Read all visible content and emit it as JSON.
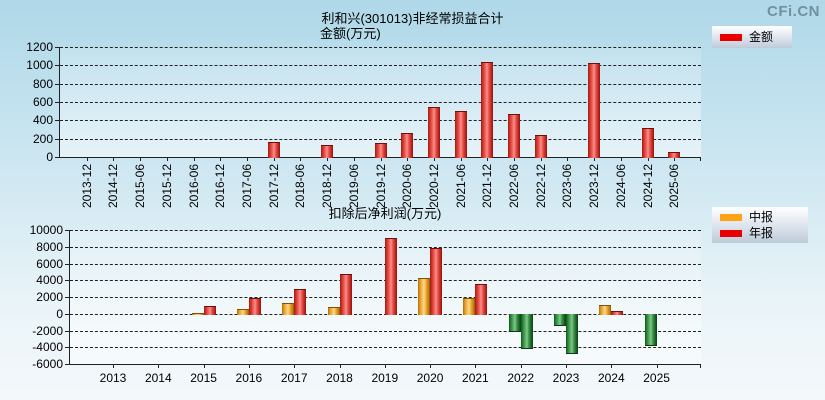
{
  "logo": "CFi.CN",
  "chart_data": [
    {
      "type": "bar",
      "title": "利和兴(301013)非经常损益合计",
      "subtitle": "金额(万元)",
      "xlabel": "",
      "ylabel": "金额(万元)",
      "ylim": [
        0,
        1200
      ],
      "yticks": [
        0,
        200,
        400,
        600,
        800,
        1000,
        1200
      ],
      "grid": true,
      "legend_position": "top-right",
      "legend": [
        {
          "label": "金额",
          "color": "#e80000"
        }
      ],
      "categories": [
        "2013-12",
        "2014-12",
        "2015-06",
        "2015-12",
        "2016-06",
        "2016-12",
        "2017-06",
        "2017-12",
        "2018-06",
        "2018-12",
        "2019-06",
        "2019-12",
        "2020-06",
        "2020-12",
        "2021-06",
        "2021-12",
        "2022-06",
        "2022-12",
        "2023-06",
        "2023-12",
        "2024-06",
        "2024-12",
        "2025-06"
      ],
      "series": [
        {
          "name": "金额",
          "color": "#e80000",
          "color_key": "red",
          "values": [
            null,
            null,
            null,
            null,
            null,
            null,
            null,
            160,
            null,
            130,
            null,
            155,
            260,
            550,
            500,
            1040,
            470,
            240,
            null,
            1030,
            null,
            320,
            60
          ]
        }
      ]
    },
    {
      "type": "bar",
      "title": "扣除后净利润(万元)",
      "xlabel": "",
      "ylabel": "扣除后净利润(万元)",
      "ylim": [
        -6000,
        10000
      ],
      "yticks": [
        -6000,
        -4000,
        -2000,
        0,
        2000,
        4000,
        6000,
        8000,
        10000
      ],
      "grid": true,
      "legend_position": "top-right",
      "negative_color": "#2f9e41",
      "negative_color_key": "green",
      "legend": [
        {
          "label": "中报",
          "color": "#ffa216"
        },
        {
          "label": "年报",
          "color": "#e80000"
        }
      ],
      "categories": [
        "2013",
        "2014",
        "2015",
        "2016",
        "2017",
        "2018",
        "2019",
        "2020",
        "2021",
        "2022",
        "2023",
        "2024",
        "2025"
      ],
      "series": [
        {
          "name": "中报",
          "color": "#ffa216",
          "color_key": "orange",
          "values": [
            null,
            null,
            120,
            600,
            1300,
            800,
            null,
            4300,
            1850,
            -2100,
            -1300,
            1100,
            -3700
          ]
        },
        {
          "name": "年报",
          "color": "#e80000",
          "color_key": "red",
          "values": [
            null,
            null,
            900,
            1900,
            2900,
            4800,
            9100,
            7900,
            3600,
            -4100,
            -4700,
            300,
            null
          ]
        }
      ]
    }
  ]
}
